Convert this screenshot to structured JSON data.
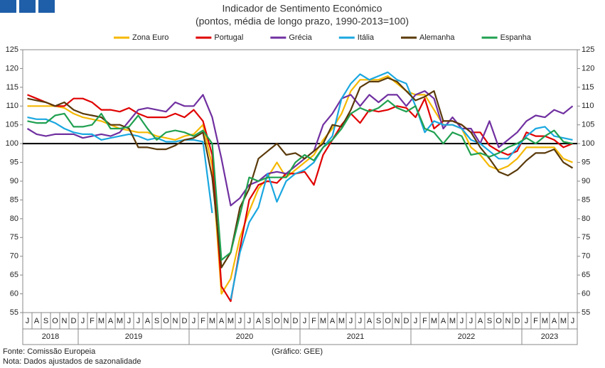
{
  "chart_data": {
    "type": "line",
    "title": "Indicador de Sentimento Económico",
    "subtitle": "(pontos, média de longo prazo, 1990-2013=100)",
    "categories": [
      "J",
      "A",
      "S",
      "O",
      "N",
      "D",
      "J",
      "F",
      "M",
      "A",
      "M",
      "J",
      "J",
      "A",
      "S",
      "O",
      "N",
      "D",
      "J",
      "F",
      "M",
      "A",
      "M",
      "J",
      "J",
      "A",
      "S",
      "O",
      "N",
      "D",
      "J",
      "F",
      "M",
      "A",
      "M",
      "J",
      "J",
      "A",
      "S",
      "O",
      "N",
      "D",
      "J",
      "F",
      "M",
      "A",
      "M",
      "J",
      "J",
      "A",
      "S",
      "O",
      "N",
      "D",
      "J",
      "F",
      "M",
      "A",
      "M",
      "J"
    ],
    "years": [
      "2018",
      "2019",
      "2020",
      "2021",
      "2022",
      "2023"
    ],
    "series": [
      {
        "name": "Zona Euro",
        "color": "#f5b800",
        "values": [
          110,
          110,
          110,
          110,
          109.5,
          108,
          107,
          106.5,
          106,
          105,
          104,
          103.5,
          103,
          103,
          102,
          101.5,
          101,
          102,
          102.5,
          105,
          94,
          60,
          64,
          75,
          82,
          88,
          91,
          95,
          91,
          93,
          95,
          97,
          101,
          104,
          108,
          114,
          117,
          117,
          117,
          118,
          116,
          114,
          113,
          113,
          109,
          105,
          105,
          104,
          99,
          97,
          94,
          93,
          94,
          96,
          99,
          99,
          99,
          99,
          96,
          95
        ]
      },
      {
        "name": "Portugal",
        "color": "#e00000",
        "values": [
          113,
          112,
          111,
          110,
          110,
          112,
          112,
          111,
          109,
          109,
          108.5,
          109.5,
          108,
          107,
          107,
          107,
          108,
          107,
          109,
          106,
          97,
          62,
          58,
          72,
          85,
          89,
          90,
          89.5,
          92,
          92,
          92.5,
          89,
          97,
          101,
          105,
          108,
          105.5,
          109,
          108.5,
          109,
          110,
          109.5,
          107,
          112,
          104,
          106,
          106,
          105,
          103,
          103,
          99.5,
          98,
          97,
          98,
          103,
          102,
          102,
          101,
          99,
          100
        ]
      },
      {
        "name": "Grécia",
        "color": "#7030a0",
        "values": [
          104,
          102.5,
          102,
          102.5,
          102.5,
          102.5,
          101.5,
          102,
          102.5,
          102,
          103,
          106,
          109,
          109.5,
          109,
          108.5,
          111,
          110,
          110,
          113,
          107,
          96,
          83.5,
          85.5,
          89,
          90,
          92,
          92.5,
          92,
          94,
          96,
          98,
          105,
          108,
          112,
          113,
          110,
          113,
          111,
          113,
          113,
          110,
          113,
          114,
          112,
          104,
          107,
          104,
          104,
          100,
          106,
          99,
          101,
          103,
          106,
          107.5,
          107,
          109,
          108,
          110
        ]
      },
      {
        "name": "Itália",
        "color": "#1aa7e0",
        "values": [
          107,
          106.5,
          106.5,
          105.5,
          104,
          103,
          102.5,
          102.5,
          101,
          101.5,
          102,
          102.5,
          102,
          101,
          101.5,
          100.5,
          100.5,
          101,
          101,
          100.5,
          81.5,
          null,
          58.5,
          71,
          79,
          83,
          92,
          84.5,
          90,
          92,
          93,
          95,
          99,
          102,
          112,
          116,
          118.5,
          117,
          118,
          119,
          117,
          116,
          110,
          103,
          106,
          105,
          105,
          104,
          101,
          100,
          98,
          96,
          96,
          99,
          102,
          104,
          104.5,
          102,
          101.5,
          101
        ]
      },
      {
        "name": "Alemanha",
        "color": "#5a3a0a",
        "values": [
          112,
          111.5,
          111,
          110,
          111,
          109,
          108,
          107.5,
          107,
          105,
          105,
          104,
          99,
          99,
          98.5,
          98.5,
          99.5,
          101,
          101.5,
          103,
          91,
          67,
          71,
          83,
          88,
          96,
          98,
          100,
          97,
          97.5,
          96,
          98,
          100,
          105,
          104.5,
          109,
          115,
          116.5,
          116.5,
          117.5,
          116.5,
          114,
          111.5,
          112.5,
          114,
          106,
          106,
          105,
          103,
          99,
          96,
          92.5,
          91.5,
          93,
          95.5,
          97.5,
          97.5,
          98.5,
          95,
          93.5
        ]
      },
      {
        "name": "Espanha",
        "color": "#20a050",
        "values": [
          106,
          105.5,
          105.5,
          107.5,
          108,
          104.5,
          104.5,
          105,
          108,
          104,
          104,
          104.5,
          107.5,
          104,
          101,
          103,
          103.5,
          103,
          102,
          103.5,
          100,
          69,
          71,
          81,
          91,
          90,
          91,
          91,
          91,
          95,
          97,
          95.5,
          99,
          101,
          104,
          108,
          109.5,
          108.5,
          109.5,
          111.5,
          109.5,
          108.5,
          110,
          104,
          103,
          100,
          103,
          102,
          97,
          97.5,
          96.5,
          97.5,
          99,
          100,
          101.5,
          100,
          102,
          103.5,
          100.5,
          100
        ]
      }
    ],
    "ylim": [
      55,
      125
    ],
    "yticks": [
      55,
      60,
      65,
      70,
      75,
      80,
      85,
      90,
      95,
      100,
      105,
      110,
      115,
      120,
      125
    ],
    "reference_line": 100,
    "grid": false,
    "legend": "top",
    "source": "Fonte: Comissão Europeia",
    "note": "Nota: Dados ajustados de sazonalidade",
    "credit": "(Gráfico: GEE)"
  }
}
